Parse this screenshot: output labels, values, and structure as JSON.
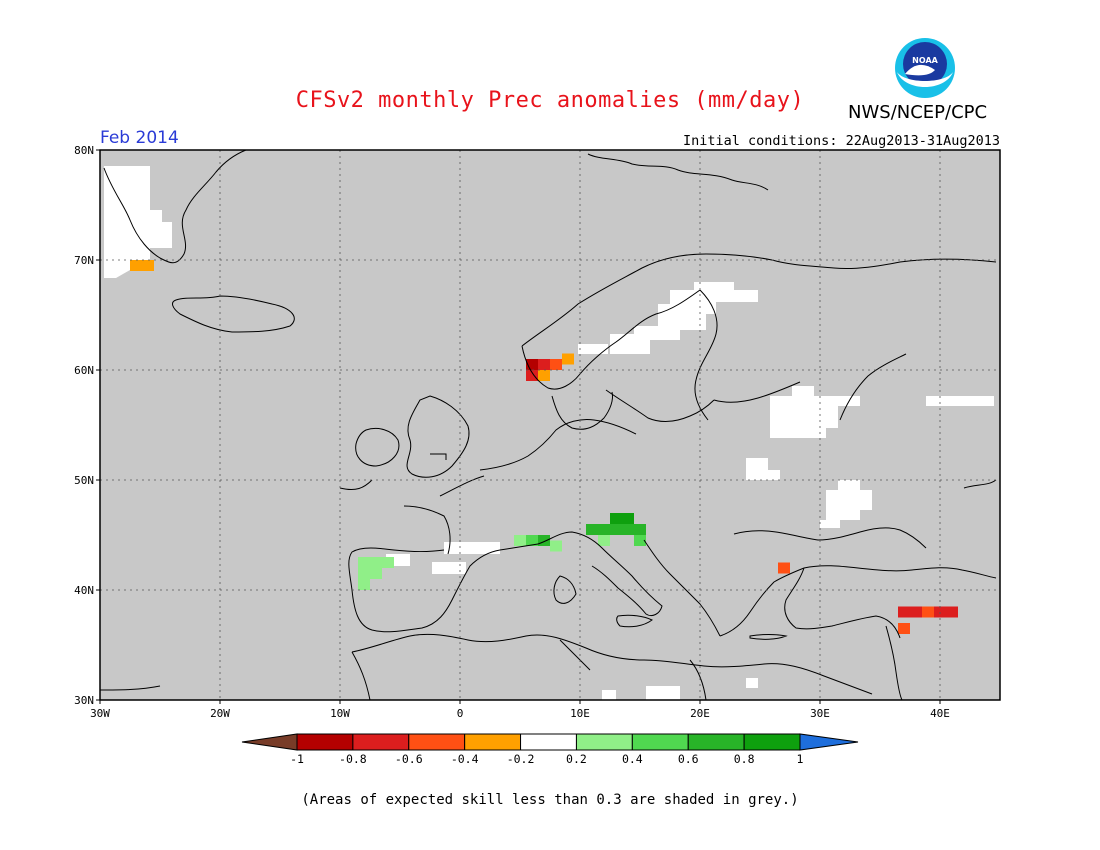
{
  "title": "CFSv2 monthly Prec anomalies (mm/day)",
  "agency": "NWS/NCEP/CPC",
  "logo_text": "NOAA",
  "valid_month": "Feb 2014",
  "initial_conditions": "Initial conditions: 22Aug2013-31Aug2013",
  "footnote": "(Areas of expected skill less than 0.3 are shaded in grey.)",
  "map": {
    "lon_range": [
      -30,
      45
    ],
    "lat_range": [
      30,
      80
    ],
    "lon_ticks": [
      "30W",
      "20W",
      "10W",
      "0",
      "10E",
      "20E",
      "30E",
      "40E"
    ],
    "lat_ticks": [
      "30N",
      "40N",
      "50N",
      "60N",
      "70N",
      "80N"
    ],
    "grid": true,
    "background_color": "#c8c8c8"
  },
  "colorbar": {
    "labels": [
      "-1",
      "-0.8",
      "-0.6",
      "-0.4",
      "-0.2",
      "0.2",
      "0.4",
      "0.6",
      "0.8",
      "1"
    ],
    "colors": [
      "#783c28",
      "#b40000",
      "#dc1e1e",
      "#ff5014",
      "#ffa000",
      "#ffffff",
      "#90ef88",
      "#50d850",
      "#28b428",
      "#0ea00e",
      "#1e6edc"
    ]
  },
  "anomaly_cells": [
    {
      "lon": 6,
      "lat": 60.5,
      "value": -1.0
    },
    {
      "lon": 6,
      "lat": 59.5,
      "value": -0.8
    },
    {
      "lon": 7,
      "lat": 60.5,
      "value": -0.8
    },
    {
      "lon": 8,
      "lat": 60.5,
      "value": -0.5
    },
    {
      "lon": 9,
      "lat": 61,
      "value": -0.3
    },
    {
      "lon": 7,
      "lat": 59.5,
      "value": -0.3
    },
    {
      "lon": -27,
      "lat": 69.5,
      "value": -0.3
    },
    {
      "lon": -26,
      "lat": 69.5,
      "value": -0.3
    },
    {
      "lon": 27,
      "lat": 42,
      "value": -0.5
    },
    {
      "lon": 37,
      "lat": 38,
      "value": -0.8
    },
    {
      "lon": 38,
      "lat": 38,
      "value": -0.8
    },
    {
      "lon": 39,
      "lat": 38,
      "value": -0.5
    },
    {
      "lon": 40,
      "lat": 38,
      "value": -0.8
    },
    {
      "lon": 41,
      "lat": 38,
      "value": -0.8
    },
    {
      "lon": 37,
      "lat": 36.5,
      "value": -0.5
    },
    {
      "lon": -8,
      "lat": 42.5,
      "value": 0.3
    },
    {
      "lon": -7,
      "lat": 42.5,
      "value": 0.3
    },
    {
      "lon": -6,
      "lat": 42.5,
      "value": 0.3
    },
    {
      "lon": -8,
      "lat": 41.5,
      "value": 0.3
    },
    {
      "lon": -7,
      "lat": 41.5,
      "value": 0.3
    },
    {
      "lon": -8,
      "lat": 40.5,
      "value": 0.3
    },
    {
      "lon": 5,
      "lat": 44.5,
      "value": 0.3
    },
    {
      "lon": 6,
      "lat": 44.5,
      "value": 0.5
    },
    {
      "lon": 7,
      "lat": 44.5,
      "value": 0.7
    },
    {
      "lon": 8,
      "lat": 44,
      "value": 0.3
    },
    {
      "lon": 11,
      "lat": 45.5,
      "value": 0.7
    },
    {
      "lon": 12,
      "lat": 45.5,
      "value": 0.7
    },
    {
      "lon": 13,
      "lat": 46.5,
      "value": 0.9
    },
    {
      "lon": 14,
      "lat": 46.5,
      "value": 0.9
    },
    {
      "lon": 13,
      "lat": 45.5,
      "value": 0.7
    },
    {
      "lon": 14,
      "lat": 45.5,
      "value": 0.7
    },
    {
      "lon": 15,
      "lat": 45.5,
      "value": 0.7
    },
    {
      "lon": 12,
      "lat": 44.5,
      "value": 0.3
    },
    {
      "lon": 15,
      "lat": 44.5,
      "value": 0.5
    }
  ]
}
